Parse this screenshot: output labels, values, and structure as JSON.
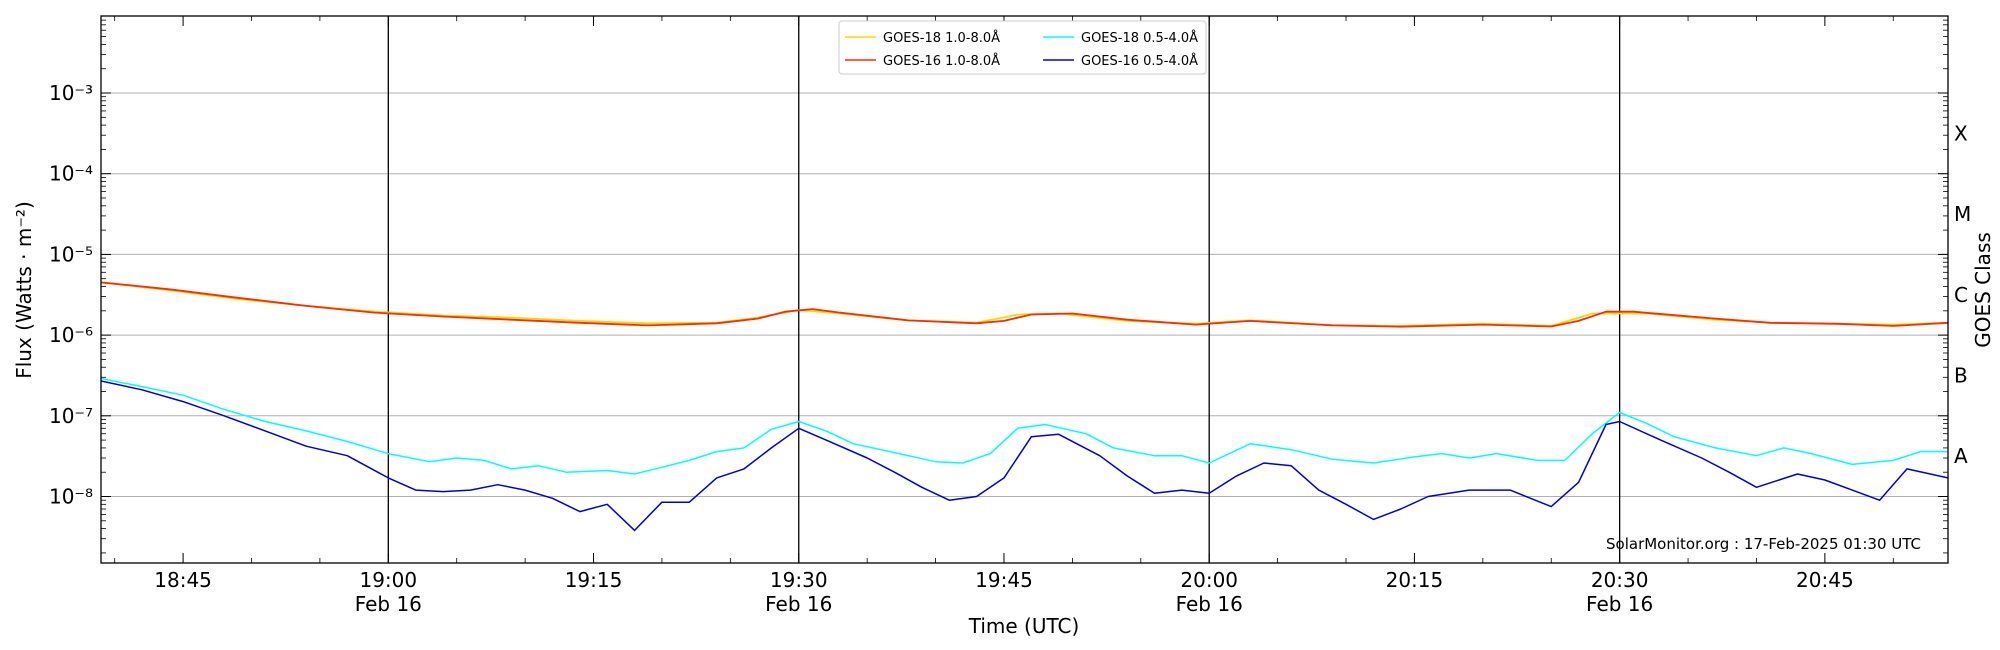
{
  "chart_data": {
    "type": "line",
    "xlabel": "Time (UTC)",
    "ylabel": "Flux (Watts · m⁻²)",
    "y2label": "GOES Class",
    "yscale": "log",
    "ylim": [
      1.5e-09,
      0.009
    ],
    "y_ticks": [
      "10⁻⁸",
      "10⁻⁷",
      "10⁻⁶",
      "10⁻⁵",
      "10⁻⁴",
      "10⁻³"
    ],
    "goes_classes": [
      "A",
      "B",
      "C",
      "M",
      "X"
    ],
    "xlim": [
      "18:39",
      "20:54"
    ],
    "x_ticks": [
      {
        "t": "18:45",
        "line1": "18:45",
        "line2": ""
      },
      {
        "t": "19:00",
        "line1": "19:00",
        "line2": "Feb 16"
      },
      {
        "t": "19:15",
        "line1": "19:15",
        "line2": ""
      },
      {
        "t": "19:30",
        "line1": "19:30",
        "line2": "Feb 16"
      },
      {
        "t": "19:45",
        "line1": "19:45",
        "line2": ""
      },
      {
        "t": "20:00",
        "line1": "20:00",
        "line2": "Feb 16"
      },
      {
        "t": "20:15",
        "line1": "20:15",
        "line2": ""
      },
      {
        "t": "20:30",
        "line1": "20:30",
        "line2": "Feb 16"
      },
      {
        "t": "20:45",
        "line1": "20:45",
        "line2": ""
      }
    ],
    "half_hour_lines": [
      "19:00",
      "19:30",
      "20:00",
      "20:30"
    ],
    "grid": "horizontal",
    "legend_position": "top-center",
    "credit": "SolarMonitor.org : 17-Feb-2025 01:30 UTC",
    "series": [
      {
        "name": "GOES-18 1.0-8.0Å",
        "color": "#ffd700",
        "points": [
          [
            "18:39",
            4.5e-06
          ],
          [
            "18:44",
            3.6e-06
          ],
          [
            "18:49",
            2.8e-06
          ],
          [
            "18:54",
            2.3e-06
          ],
          [
            "18:59",
            1.95e-06
          ],
          [
            "19:04",
            1.75e-06
          ],
          [
            "19:09",
            1.65e-06
          ],
          [
            "19:14",
            1.5e-06
          ],
          [
            "19:19",
            1.4e-06
          ],
          [
            "19:24",
            1.42e-06
          ],
          [
            "19:27",
            1.65e-06
          ],
          [
            "19:30",
            2.05e-06
          ],
          [
            "19:33",
            1.85e-06
          ],
          [
            "19:38",
            1.52e-06
          ],
          [
            "19:43",
            1.42e-06
          ],
          [
            "19:46",
            1.8e-06
          ],
          [
            "19:49",
            1.85e-06
          ],
          [
            "19:54",
            1.5e-06
          ],
          [
            "19:59",
            1.38e-06
          ],
          [
            "20:03",
            1.52e-06
          ],
          [
            "20:09",
            1.33e-06
          ],
          [
            "20:14",
            1.3e-06
          ],
          [
            "20:20",
            1.38e-06
          ],
          [
            "20:25",
            1.3e-06
          ],
          [
            "20:28",
            1.85e-06
          ],
          [
            "20:32",
            1.85e-06
          ],
          [
            "20:37",
            1.55e-06
          ],
          [
            "20:41",
            1.43e-06
          ],
          [
            "20:46",
            1.38e-06
          ],
          [
            "20:50",
            1.35e-06
          ],
          [
            "20:54",
            1.42e-06
          ]
        ]
      },
      {
        "name": "GOES-16 1.0-8.0Å",
        "color": "#ff2a00",
        "points": [
          [
            "18:39",
            4.5e-06
          ],
          [
            "18:44",
            3.7e-06
          ],
          [
            "18:49",
            2.9e-06
          ],
          [
            "18:54",
            2.3e-06
          ],
          [
            "18:59",
            1.9e-06
          ],
          [
            "19:04",
            1.7e-06
          ],
          [
            "19:09",
            1.55e-06
          ],
          [
            "19:14",
            1.42e-06
          ],
          [
            "19:19",
            1.32e-06
          ],
          [
            "19:24",
            1.4e-06
          ],
          [
            "19:27",
            1.6e-06
          ],
          [
            "19:29",
            1.95e-06
          ],
          [
            "19:31",
            2.1e-06
          ],
          [
            "19:33",
            1.9e-06
          ],
          [
            "19:38",
            1.52e-06
          ],
          [
            "19:43",
            1.4e-06
          ],
          [
            "19:45",
            1.5e-06
          ],
          [
            "19:47",
            1.8e-06
          ],
          [
            "19:50",
            1.85e-06
          ],
          [
            "19:54",
            1.55e-06
          ],
          [
            "19:59",
            1.35e-06
          ],
          [
            "20:03",
            1.5e-06
          ],
          [
            "20:09",
            1.32e-06
          ],
          [
            "20:14",
            1.27e-06
          ],
          [
            "20:20",
            1.35e-06
          ],
          [
            "20:25",
            1.28e-06
          ],
          [
            "20:27",
            1.5e-06
          ],
          [
            "20:29",
            1.95e-06
          ],
          [
            "20:31",
            1.95e-06
          ],
          [
            "20:37",
            1.6e-06
          ],
          [
            "20:41",
            1.42e-06
          ],
          [
            "20:46",
            1.38e-06
          ],
          [
            "20:50",
            1.3e-06
          ],
          [
            "20:54",
            1.42e-06
          ]
        ]
      },
      {
        "name": "GOES-18 0.5-4.0Å",
        "color": "#00ffff",
        "points": [
          [
            "18:39",
            2.9e-07
          ],
          [
            "18:42",
            2.3e-07
          ],
          [
            "18:45",
            1.8e-07
          ],
          [
            "18:48",
            1.2e-07
          ],
          [
            "18:51",
            8.5e-08
          ],
          [
            "18:54",
            6.5e-08
          ],
          [
            "18:57",
            4.8e-08
          ],
          [
            "19:00",
            3.4e-08
          ],
          [
            "19:03",
            2.7e-08
          ],
          [
            "19:05",
            3e-08
          ],
          [
            "19:07",
            2.8e-08
          ],
          [
            "19:09",
            2.2e-08
          ],
          [
            "19:11",
            2.4e-08
          ],
          [
            "19:13",
            2e-08
          ],
          [
            "19:16",
            2.1e-08
          ],
          [
            "19:18",
            1.9e-08
          ],
          [
            "19:20",
            2.3e-08
          ],
          [
            "19:22",
            2.8e-08
          ],
          [
            "19:24",
            3.6e-08
          ],
          [
            "19:26",
            4e-08
          ],
          [
            "19:28",
            6.8e-08
          ],
          [
            "19:30",
            8.5e-08
          ],
          [
            "19:32",
            6.5e-08
          ],
          [
            "19:34",
            4.5e-08
          ],
          [
            "19:37",
            3.5e-08
          ],
          [
            "19:40",
            2.7e-08
          ],
          [
            "19:42",
            2.6e-08
          ],
          [
            "19:44",
            3.4e-08
          ],
          [
            "19:46",
            7e-08
          ],
          [
            "19:48",
            7.8e-08
          ],
          [
            "19:51",
            6e-08
          ],
          [
            "19:53",
            4e-08
          ],
          [
            "19:56",
            3.2e-08
          ],
          [
            "19:58",
            3.2e-08
          ],
          [
            "20:00",
            2.6e-08
          ],
          [
            "20:03",
            4.5e-08
          ],
          [
            "20:06",
            3.8e-08
          ],
          [
            "20:09",
            2.9e-08
          ],
          [
            "20:12",
            2.6e-08
          ],
          [
            "20:15",
            3.1e-08
          ],
          [
            "20:17",
            3.4e-08
          ],
          [
            "20:19",
            3e-08
          ],
          [
            "20:21",
            3.4e-08
          ],
          [
            "20:24",
            2.8e-08
          ],
          [
            "20:26",
            2.8e-08
          ],
          [
            "20:28",
            6e-08
          ],
          [
            "20:30",
            1.1e-07
          ],
          [
            "20:32",
            8e-08
          ],
          [
            "20:34",
            5.5e-08
          ],
          [
            "20:37",
            4e-08
          ],
          [
            "20:40",
            3.2e-08
          ],
          [
            "20:42",
            4e-08
          ],
          [
            "20:44",
            3.4e-08
          ],
          [
            "20:47",
            2.5e-08
          ],
          [
            "20:50",
            2.8e-08
          ],
          [
            "20:52",
            3.6e-08
          ],
          [
            "20:54",
            3.6e-08
          ]
        ]
      },
      {
        "name": "GOES-16 0.5-4.0Å",
        "color": "#0000dd",
        "points": [
          [
            "18:39",
            2.7e-07
          ],
          [
            "18:42",
            2.1e-07
          ],
          [
            "18:45",
            1.5e-07
          ],
          [
            "18:48",
            1e-07
          ],
          [
            "18:51",
            6.5e-08
          ],
          [
            "18:54",
            4.2e-08
          ],
          [
            "18:57",
            3.2e-08
          ],
          [
            "19:00",
            1.7e-08
          ],
          [
            "19:02",
            1.2e-08
          ],
          [
            "19:04",
            1.15e-08
          ],
          [
            "19:06",
            1.2e-08
          ],
          [
            "19:08",
            1.4e-08
          ],
          [
            "19:10",
            1.2e-08
          ],
          [
            "19:12",
            9.5e-09
          ],
          [
            "19:14",
            6.5e-09
          ],
          [
            "19:16",
            8e-09
          ],
          [
            "19:18",
            3.8e-09
          ],
          [
            "19:20",
            8.5e-09
          ],
          [
            "19:22",
            8.5e-09
          ],
          [
            "19:24",
            1.7e-08
          ],
          [
            "19:26",
            2.2e-08
          ],
          [
            "19:28",
            4e-08
          ],
          [
            "19:30",
            7e-08
          ],
          [
            "19:32",
            5e-08
          ],
          [
            "19:35",
            3e-08
          ],
          [
            "19:37",
            2e-08
          ],
          [
            "19:39",
            1.3e-08
          ],
          [
            "19:41",
            9e-09
          ],
          [
            "19:43",
            1e-08
          ],
          [
            "19:45",
            1.7e-08
          ],
          [
            "19:47",
            5.5e-08
          ],
          [
            "19:49",
            5.9e-08
          ],
          [
            "19:52",
            3.2e-08
          ],
          [
            "19:54",
            1.8e-08
          ],
          [
            "19:56",
            1.1e-08
          ],
          [
            "19:58",
            1.2e-08
          ],
          [
            "20:00",
            1.1e-08
          ],
          [
            "20:02",
            1.8e-08
          ],
          [
            "20:04",
            2.6e-08
          ],
          [
            "20:06",
            2.4e-08
          ],
          [
            "20:08",
            1.2e-08
          ],
          [
            "20:10",
            8e-09
          ],
          [
            "20:12",
            5.2e-09
          ],
          [
            "20:14",
            7e-09
          ],
          [
            "20:16",
            1e-08
          ],
          [
            "20:19",
            1.2e-08
          ],
          [
            "20:22",
            1.2e-08
          ],
          [
            "20:25",
            7.5e-09
          ],
          [
            "20:27",
            1.5e-08
          ],
          [
            "20:29",
            7.8e-08
          ],
          [
            "20:30",
            8.5e-08
          ],
          [
            "20:33",
            5e-08
          ],
          [
            "20:36",
            3e-08
          ],
          [
            "20:38",
            2e-08
          ],
          [
            "20:40",
            1.3e-08
          ],
          [
            "20:43",
            1.9e-08
          ],
          [
            "20:45",
            1.6e-08
          ],
          [
            "20:47",
            1.2e-08
          ],
          [
            "20:49",
            9e-09
          ],
          [
            "20:51",
            2.2e-08
          ],
          [
            "20:54",
            1.7e-08
          ]
        ]
      }
    ]
  }
}
